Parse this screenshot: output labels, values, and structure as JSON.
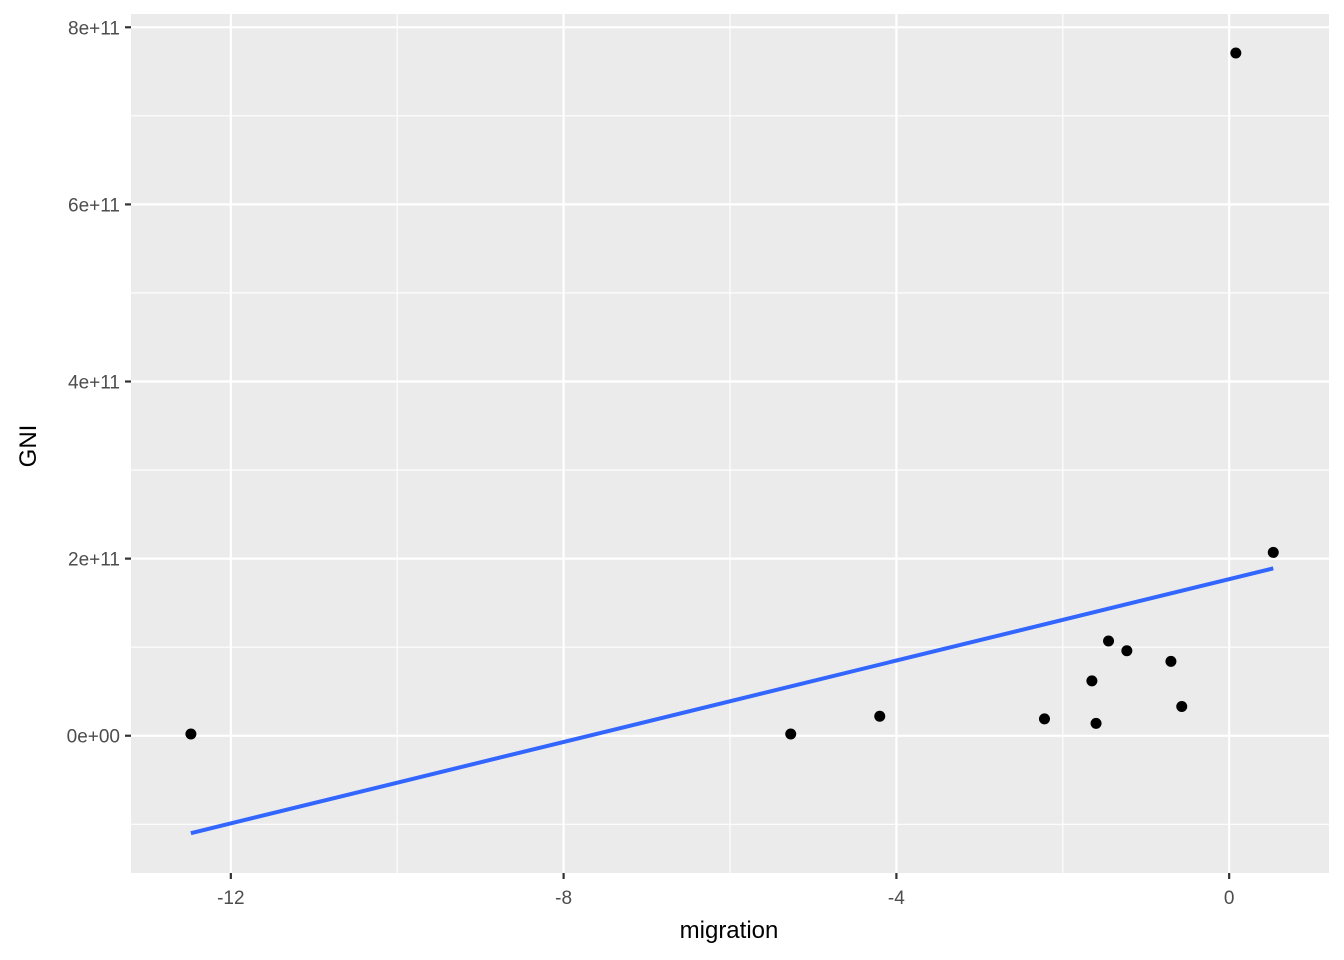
{
  "chart_data": {
    "type": "scatter",
    "xlabel": "migration",
    "ylabel": "GNI",
    "xlim": [
      -13.2,
      1.2
    ],
    "ylim": [
      -155000000000,
      815000000000
    ],
    "x_ticks": [
      {
        "value": -12,
        "label": "-12"
      },
      {
        "value": -8,
        "label": "-8"
      },
      {
        "value": -4,
        "label": "-4"
      },
      {
        "value": 0,
        "label": "0"
      }
    ],
    "y_ticks": [
      {
        "value": 0,
        "label": "0e+00"
      },
      {
        "value": 200000000000,
        "label": "2e+11"
      },
      {
        "value": 400000000000,
        "label": "4e+11"
      },
      {
        "value": 600000000000,
        "label": "6e+11"
      },
      {
        "value": 800000000000,
        "label": "8e+11"
      }
    ],
    "x_minor": [
      -14,
      -10,
      -6,
      -2,
      2
    ],
    "y_minor": [
      -100000000000,
      100000000000,
      300000000000,
      500000000000,
      700000000000
    ],
    "grid": true,
    "points": [
      {
        "x": -12.48,
        "y": 2000000000
      },
      {
        "x": -5.27,
        "y": 2000000000
      },
      {
        "x": -4.2,
        "y": 22000000000
      },
      {
        "x": -2.22,
        "y": 19000000000
      },
      {
        "x": -1.65,
        "y": 62000000000
      },
      {
        "x": -1.6,
        "y": 14000000000
      },
      {
        "x": -1.45,
        "y": 107000000000
      },
      {
        "x": -1.23,
        "y": 96000000000
      },
      {
        "x": -0.7,
        "y": 84000000000
      },
      {
        "x": -0.57,
        "y": 33000000000
      },
      {
        "x": 0.08,
        "y": 771000000000
      },
      {
        "x": 0.53,
        "y": 207000000000
      }
    ],
    "trend_line": {
      "x": [
        -12.48,
        0.53
      ],
      "y": [
        -110000000000,
        189000000000
      ],
      "color": "#3366ff"
    },
    "colors": {
      "panel": "#ebebeb",
      "grid": "#ffffff",
      "points": "#000000"
    }
  }
}
